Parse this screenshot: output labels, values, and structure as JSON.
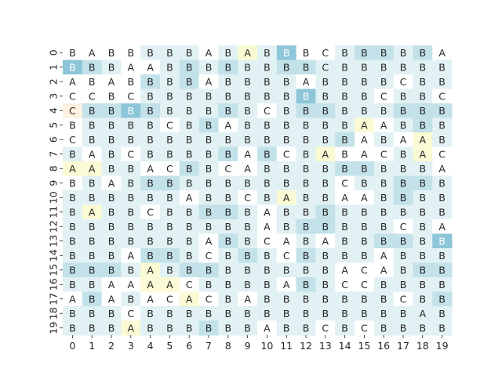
{
  "chart_data": {
    "type": "heatmap",
    "title": "",
    "xlabel": "",
    "ylabel": "",
    "x_ticks": [
      "0",
      "1",
      "2",
      "3",
      "4",
      "5",
      "6",
      "7",
      "8",
      "9",
      "10",
      "11",
      "12",
      "13",
      "14",
      "15",
      "16",
      "17",
      "18",
      "19"
    ],
    "y_ticks": [
      "0",
      "1",
      "2",
      "3",
      "4",
      "5",
      "6",
      "7",
      "8",
      "9",
      "10",
      "11",
      "12",
      "13",
      "14",
      "15",
      "16",
      "17",
      "18",
      "19"
    ],
    "grid": false,
    "legend": "none",
    "cells": [
      [
        "B",
        "A",
        "B",
        "B",
        "B",
        "B",
        "B",
        "A",
        "B",
        "A",
        "B",
        "B",
        "B",
        "C",
        "B",
        "B",
        "B",
        "B",
        "B",
        "A"
      ],
      [
        "B",
        "B",
        "B",
        "A",
        "A",
        "B",
        "B",
        "B",
        "B",
        "B",
        "B",
        "B",
        "B",
        "C",
        "B",
        "B",
        "B",
        "B",
        "B",
        "B"
      ],
      [
        "A",
        "B",
        "A",
        "B",
        "B",
        "B",
        "B",
        "A",
        "B",
        "B",
        "B",
        "B",
        "A",
        "B",
        "B",
        "B",
        "B",
        "C",
        "B",
        "B"
      ],
      [
        "C",
        "C",
        "B",
        "C",
        "B",
        "B",
        "B",
        "B",
        "B",
        "B",
        "B",
        "B",
        "B",
        "B",
        "B",
        "B",
        "C",
        "B",
        "B",
        "C"
      ],
      [
        "C",
        "B",
        "B",
        "B",
        "B",
        "B",
        "B",
        "B",
        "B",
        "B",
        "C",
        "B",
        "B",
        "B",
        "B",
        "B",
        "B",
        "B",
        "B",
        "B"
      ],
      [
        "B",
        "B",
        "B",
        "B",
        "B",
        "C",
        "B",
        "B",
        "A",
        "B",
        "B",
        "B",
        "B",
        "B",
        "B",
        "A",
        "A",
        "B",
        "B",
        "B"
      ],
      [
        "C",
        "B",
        "B",
        "B",
        "B",
        "B",
        "B",
        "B",
        "B",
        "B",
        "B",
        "B",
        "B",
        "B",
        "B",
        "A",
        "B",
        "A",
        "A",
        "B"
      ],
      [
        "B",
        "A",
        "B",
        "C",
        "B",
        "B",
        "B",
        "B",
        "B",
        "A",
        "B",
        "C",
        "B",
        "A",
        "B",
        "A",
        "C",
        "B",
        "A",
        "C"
      ],
      [
        "A",
        "A",
        "B",
        "B",
        "A",
        "C",
        "B",
        "B",
        "C",
        "A",
        "B",
        "B",
        "B",
        "B",
        "B",
        "B",
        "B",
        "B",
        "B",
        "A"
      ],
      [
        "B",
        "B",
        "A",
        "B",
        "B",
        "B",
        "B",
        "B",
        "B",
        "B",
        "B",
        "B",
        "B",
        "B",
        "C",
        "B",
        "B",
        "B",
        "B",
        "B"
      ],
      [
        "B",
        "B",
        "B",
        "B",
        "B",
        "B",
        "A",
        "B",
        "B",
        "C",
        "B",
        "A",
        "B",
        "B",
        "A",
        "A",
        "B",
        "B",
        "B",
        "B"
      ],
      [
        "B",
        "A",
        "B",
        "B",
        "C",
        "B",
        "B",
        "B",
        "B",
        "B",
        "A",
        "B",
        "B",
        "B",
        "B",
        "B",
        "B",
        "B",
        "B",
        "B"
      ],
      [
        "B",
        "B",
        "B",
        "B",
        "B",
        "B",
        "B",
        "B",
        "B",
        "B",
        "A",
        "B",
        "B",
        "B",
        "B",
        "B",
        "B",
        "C",
        "B",
        "A"
      ],
      [
        "B",
        "B",
        "B",
        "B",
        "B",
        "B",
        "B",
        "A",
        "B",
        "B",
        "C",
        "A",
        "B",
        "A",
        "B",
        "B",
        "B",
        "B",
        "B",
        "B"
      ],
      [
        "B",
        "B",
        "B",
        "A",
        "B",
        "B",
        "B",
        "C",
        "B",
        "B",
        "B",
        "C",
        "B",
        "B",
        "B",
        "B",
        "A",
        "B",
        "B",
        "B"
      ],
      [
        "B",
        "B",
        "B",
        "B",
        "A",
        "B",
        "B",
        "B",
        "B",
        "B",
        "B",
        "B",
        "B",
        "B",
        "A",
        "C",
        "A",
        "B",
        "B",
        "B"
      ],
      [
        "B",
        "B",
        "A",
        "A",
        "A",
        "A",
        "C",
        "B",
        "B",
        "B",
        "B",
        "A",
        "B",
        "B",
        "C",
        "C",
        "B",
        "B",
        "B",
        "B"
      ],
      [
        "A",
        "B",
        "A",
        "B",
        "A",
        "C",
        "A",
        "C",
        "B",
        "A",
        "B",
        "B",
        "B",
        "B",
        "B",
        "B",
        "B",
        "C",
        "B",
        "B"
      ],
      [
        "B",
        "B",
        "B",
        "C",
        "B",
        "B",
        "B",
        "B",
        "B",
        "B",
        "B",
        "B",
        "B",
        "B",
        "B",
        "B",
        "B",
        "B",
        "A",
        "B"
      ],
      [
        "B",
        "B",
        "B",
        "A",
        "B",
        "B",
        "B",
        "B",
        "B",
        "B",
        "A",
        "B",
        "B",
        "C",
        "B",
        "C",
        "B",
        "B",
        "B",
        "B"
      ]
    ],
    "shade": [
      [
        0,
        0,
        0,
        0,
        1,
        1,
        1,
        0,
        1,
        "y",
        1,
        3,
        0,
        0,
        1,
        2,
        2,
        1,
        2,
        0
      ],
      [
        3,
        2,
        1,
        0,
        0,
        1,
        2,
        1,
        2,
        1,
        1,
        2,
        2,
        1,
        1,
        1,
        1,
        1,
        1,
        1
      ],
      [
        0,
        0,
        0,
        0,
        2,
        1,
        2,
        0,
        1,
        1,
        1,
        1,
        0,
        1,
        1,
        1,
        1,
        0,
        1,
        1
      ],
      [
        0,
        0,
        0,
        0,
        1,
        1,
        1,
        1,
        1,
        1,
        1,
        1,
        3,
        1,
        1,
        1,
        0,
        1,
        1,
        0
      ],
      [
        "o",
        2,
        2,
        3,
        2,
        1,
        1,
        1,
        2,
        1,
        0,
        1,
        2,
        2,
        1,
        1,
        1,
        2,
        2,
        2
      ],
      [
        0,
        1,
        1,
        1,
        1,
        0,
        1,
        2,
        0,
        1,
        1,
        1,
        1,
        1,
        1,
        "y",
        0,
        1,
        2,
        1
      ],
      [
        0,
        1,
        1,
        1,
        1,
        1,
        1,
        1,
        1,
        1,
        1,
        1,
        1,
        1,
        2,
        0,
        1,
        0,
        "y",
        1
      ],
      [
        1,
        0,
        1,
        0,
        1,
        1,
        1,
        1,
        2,
        0,
        2,
        0,
        1,
        "y",
        0,
        0,
        0,
        1,
        "y",
        0
      ],
      [
        "y",
        "y",
        1,
        1,
        0,
        0,
        2,
        1,
        0,
        0,
        1,
        1,
        1,
        1,
        2,
        2,
        1,
        1,
        1,
        0
      ],
      [
        0,
        1,
        0,
        1,
        2,
        2,
        1,
        1,
        1,
        1,
        1,
        1,
        1,
        1,
        0,
        1,
        1,
        2,
        2,
        1
      ],
      [
        1,
        1,
        1,
        1,
        1,
        1,
        0,
        1,
        1,
        0,
        1,
        "y",
        1,
        1,
        0,
        0,
        1,
        2,
        1,
        1
      ],
      [
        1,
        "y",
        1,
        1,
        0,
        1,
        1,
        2,
        2,
        1,
        0,
        1,
        1,
        2,
        1,
        1,
        1,
        1,
        1,
        1
      ],
      [
        1,
        1,
        1,
        1,
        1,
        1,
        1,
        1,
        1,
        1,
        0,
        1,
        2,
        2,
        1,
        1,
        1,
        0,
        1,
        0
      ],
      [
        1,
        1,
        1,
        1,
        1,
        1,
        1,
        0,
        2,
        1,
        0,
        0,
        1,
        0,
        1,
        1,
        2,
        2,
        1,
        3
      ],
      [
        1,
        1,
        1,
        0,
        2,
        2,
        1,
        0,
        1,
        2,
        1,
        0,
        2,
        1,
        1,
        1,
        0,
        1,
        1,
        1
      ],
      [
        2,
        2,
        2,
        1,
        "y",
        1,
        2,
        2,
        1,
        1,
        1,
        1,
        1,
        1,
        0,
        0,
        0,
        1,
        2,
        2
      ],
      [
        1,
        1,
        0,
        0,
        "y",
        "y",
        0,
        1,
        1,
        1,
        1,
        0,
        2,
        1,
        0,
        0,
        1,
        1,
        1,
        1
      ],
      [
        0,
        2,
        0,
        1,
        0,
        0,
        "y",
        0,
        1,
        0,
        1,
        1,
        1,
        1,
        1,
        1,
        1,
        0,
        1,
        2
      ],
      [
        1,
        1,
        1,
        0,
        1,
        1,
        1,
        1,
        1,
        1,
        1,
        1,
        1,
        1,
        1,
        1,
        1,
        1,
        1,
        1
      ],
      [
        1,
        1,
        1,
        "y",
        1,
        1,
        1,
        2,
        1,
        1,
        0,
        1,
        1,
        0,
        1,
        0,
        1,
        1,
        1,
        1
      ]
    ],
    "palette": {
      "0": "#ffffff",
      "1": "#e2f1f3",
      "2": "#c2e1e9",
      "3": "#8dc6d9",
      "y": "#fafad4",
      "o": "#fdf1e2"
    },
    "text_colors": {
      "dark": "#262626",
      "light": "#ffffff"
    }
  }
}
